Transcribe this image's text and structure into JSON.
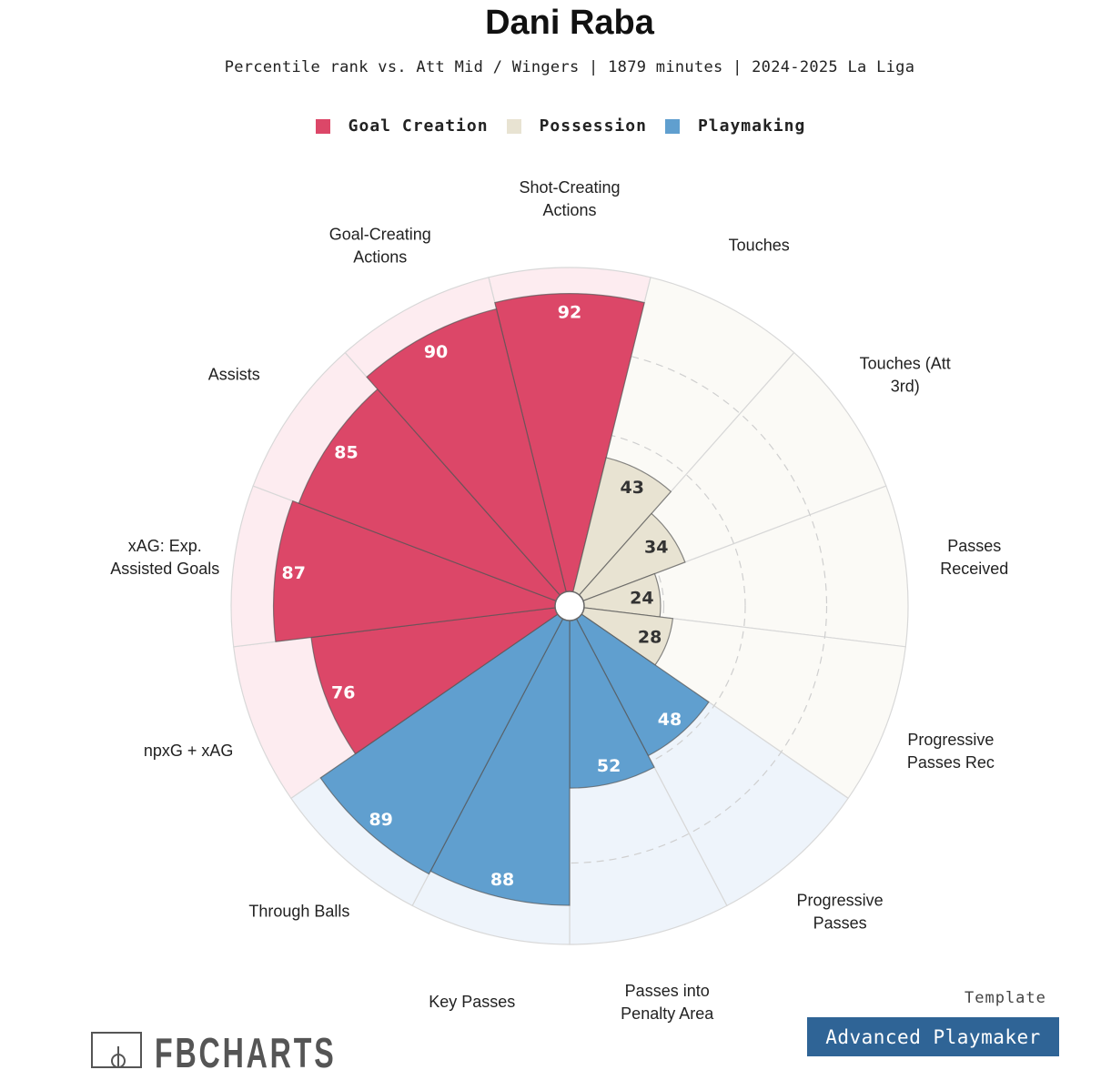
{
  "chart_data": {
    "type": "radar-percentile",
    "title": "Dani Raba",
    "subtitle": "Percentile rank vs. Att Mid / Wingers | 1879 minutes | 2024-2025 La Liga",
    "range": [
      0,
      100
    ],
    "legend": [
      {
        "name": "Goal Creation",
        "color": "#dc4768"
      },
      {
        "name": "Possession",
        "color": "#e8e3d2"
      },
      {
        "name": "Playmaking",
        "color": "#609fcf"
      }
    ],
    "series": [
      {
        "label": "Shot-Creating\nActions",
        "value": 92,
        "group": "Goal Creation"
      },
      {
        "label": "Touches",
        "value": 43,
        "group": "Possession"
      },
      {
        "label": "Touches (Att\n3rd)",
        "value": 34,
        "group": "Possession"
      },
      {
        "label": "Passes\nReceived",
        "value": 24,
        "group": "Possession"
      },
      {
        "label": "Progressive\nPasses Rec",
        "value": 28,
        "group": "Possession"
      },
      {
        "label": "Progressive\nPasses",
        "value": 48,
        "group": "Playmaking"
      },
      {
        "label": "Passes into\nPenalty Area",
        "value": 52,
        "group": "Playmaking"
      },
      {
        "label": "Key Passes",
        "value": 88,
        "group": "Playmaking"
      },
      {
        "label": "Through Balls",
        "value": 89,
        "group": "Playmaking"
      },
      {
        "label": "npxG + xAG",
        "value": 76,
        "group": "Goal Creation"
      },
      {
        "label": "xAG: Exp.\nAssisted Goals",
        "value": 87,
        "group": "Goal Creation"
      },
      {
        "label": "Assists",
        "value": 85,
        "group": "Goal Creation"
      },
      {
        "label": "Goal-Creating\nActions",
        "value": 90,
        "group": "Goal Creation"
      }
    ],
    "group_styles": {
      "Goal Creation": {
        "fill": "#dc4768",
        "background": "#fdecf0",
        "text": "#ffffff"
      },
      "Possession": {
        "fill": "#e8e3d2",
        "background": "#fbfaf6",
        "text": "#333333"
      },
      "Playmaking": {
        "fill": "#609fcf",
        "background": "#eef4fb",
        "text": "#ffffff"
      }
    }
  },
  "template": {
    "caption": "Template",
    "name": "Advanced Playmaker"
  },
  "brand": {
    "name": "FBCHARTS"
  }
}
